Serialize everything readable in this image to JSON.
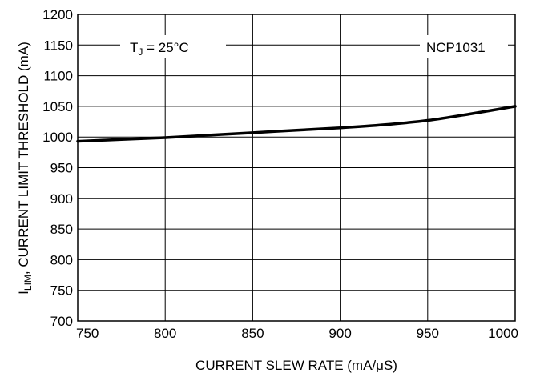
{
  "chart_data": {
    "type": "line",
    "xlabel": "CURRENT SLEW RATE (mA/μS)",
    "ylabel_main": "I",
    "ylabel_sub": "LIM",
    "ylabel_rest": ", CURRENT LIMIT THRESHOLD (mA)",
    "xlim": [
      750,
      1000
    ],
    "ylim": [
      700,
      1200
    ],
    "x_ticks": [
      "750",
      "800",
      "850",
      "900",
      "950",
      "1000"
    ],
    "y_ticks": [
      "700",
      "750",
      "800",
      "850",
      "900",
      "950",
      "1000",
      "1050",
      "1100",
      "1150",
      "1200"
    ],
    "grid": true,
    "annotations": {
      "condition_main": "T",
      "condition_sub": "J",
      "condition_rest": " = 25°C",
      "device": "NCP1031"
    },
    "series": [
      {
        "x": [
          750,
          775,
          800,
          825,
          850,
          875,
          900,
          925,
          950,
          975,
          1000
        ],
        "y": [
          993,
          996,
          999,
          1003,
          1007,
          1011,
          1015,
          1020,
          1027,
          1038,
          1050
        ]
      }
    ]
  }
}
